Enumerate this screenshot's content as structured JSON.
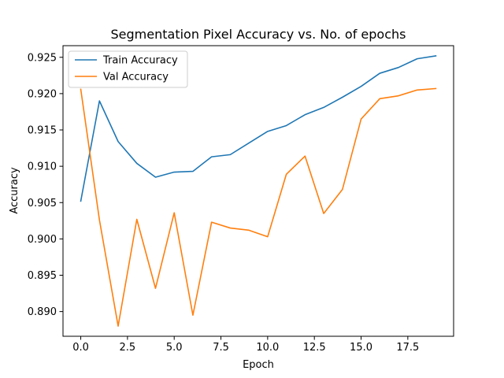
{
  "chart_data": {
    "type": "line",
    "title": "Segmentation Pixel Accuracy vs. No. of epochs",
    "xlabel": "Epoch",
    "ylabel": "Accuracy",
    "xlim": [
      -0.95,
      19.95
    ],
    "ylim": [
      0.8866,
      0.9266
    ],
    "xticks": [
      0.0,
      2.5,
      5.0,
      7.5,
      10.0,
      12.5,
      15.0,
      17.5
    ],
    "xtick_labels": [
      "0.0",
      "2.5",
      "5.0",
      "7.5",
      "10.0",
      "12.5",
      "15.0",
      "17.5"
    ],
    "yticks": [
      0.89,
      0.895,
      0.9,
      0.905,
      0.91,
      0.915,
      0.92,
      0.925
    ],
    "ytick_labels": [
      "0.890",
      "0.895",
      "0.900",
      "0.905",
      "0.910",
      "0.915",
      "0.920",
      "0.925"
    ],
    "grid": false,
    "legend_position": "top-left",
    "x": [
      0,
      1,
      2,
      3,
      4,
      5,
      6,
      7,
      8,
      9,
      10,
      11,
      12,
      13,
      14,
      15,
      16,
      17,
      18,
      19
    ],
    "series": [
      {
        "name": "Train Accuracy",
        "color": "#1f77b4",
        "values": [
          0.9052,
          0.919,
          0.9134,
          0.9104,
          0.9085,
          0.9092,
          0.9093,
          0.9113,
          0.9116,
          0.9132,
          0.9148,
          0.9156,
          0.9171,
          0.9181,
          0.9195,
          0.921,
          0.9228,
          0.9236,
          0.9248,
          0.9252
        ]
      },
      {
        "name": "Val Accuracy",
        "color": "#ff7f0e",
        "values": [
          0.9206,
          0.9026,
          0.888,
          0.9027,
          0.8932,
          0.9036,
          0.8895,
          0.9023,
          0.9015,
          0.9012,
          0.9003,
          0.9089,
          0.9114,
          0.9035,
          0.9068,
          0.9165,
          0.9193,
          0.9197,
          0.9205,
          0.9207
        ]
      }
    ]
  }
}
